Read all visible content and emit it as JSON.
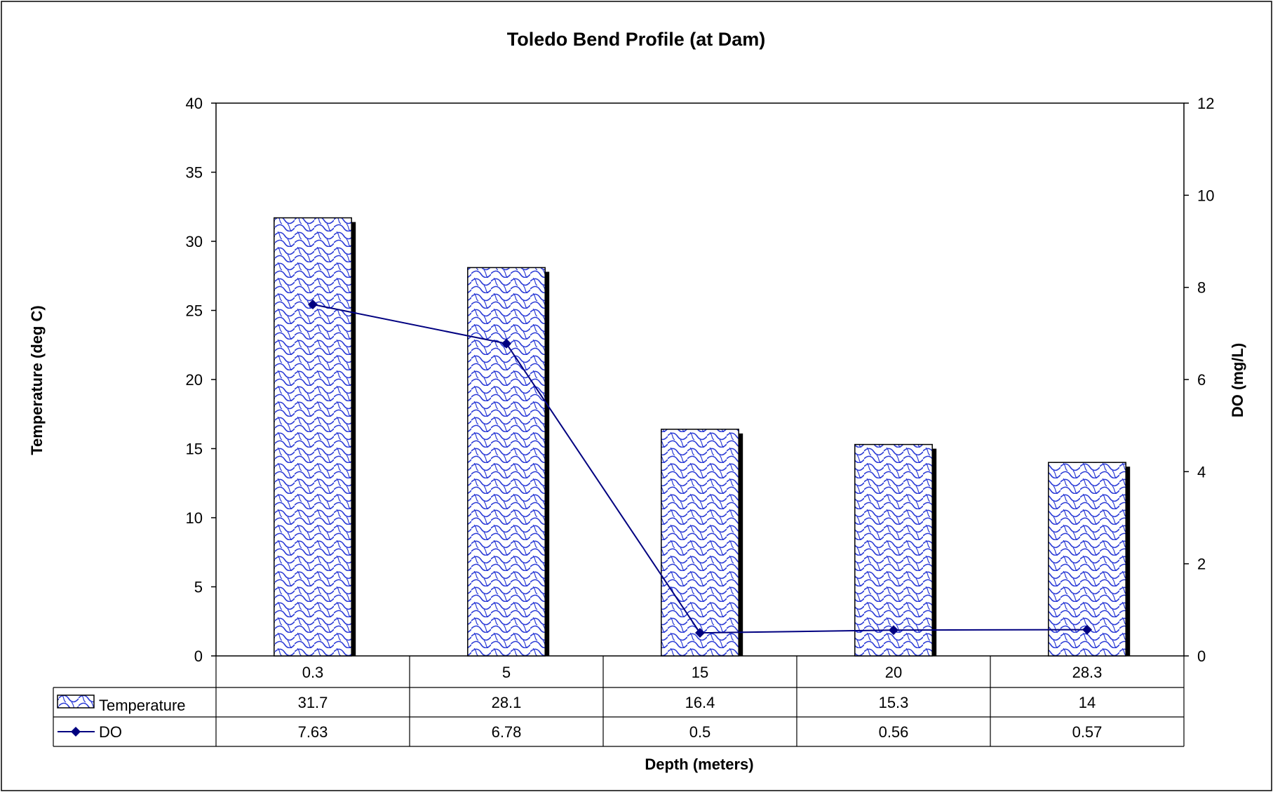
{
  "chart_data": {
    "type": "bar",
    "title": "Toledo Bend Profile (at Dam)",
    "xlabel": "Depth (meters)",
    "categories": [
      "0.3",
      "5",
      "15",
      "20",
      "28.3"
    ],
    "series": [
      {
        "name": "Temperature",
        "kind": "bar",
        "axis": "left",
        "values": [
          31.7,
          28.1,
          16.4,
          15.3,
          14
        ]
      },
      {
        "name": "DO",
        "kind": "line",
        "axis": "right",
        "values": [
          7.63,
          6.78,
          0.5,
          0.56,
          0.57
        ]
      }
    ],
    "y_left": {
      "label": "Temperature (deg C)",
      "min": 0,
      "max": 40,
      "ticks": [
        "0",
        "5",
        "10",
        "15",
        "20",
        "25",
        "30",
        "35",
        "40"
      ]
    },
    "y_right": {
      "label": "DO (mg/L)",
      "min": 0,
      "max": 12,
      "ticks": [
        "0",
        "2",
        "4",
        "6",
        "8",
        "10",
        "12"
      ]
    },
    "data_table": {
      "rows": [
        {
          "label": "Temperature",
          "cells": [
            "31.7",
            "28.1",
            "16.4",
            "15.3",
            "14"
          ]
        },
        {
          "label": "DO",
          "cells": [
            "7.63",
            "6.78",
            "0.5",
            "0.56",
            "0.57"
          ]
        }
      ]
    },
    "grid": false,
    "legend": "data-table",
    "colors": {
      "bar_pattern": "#2b3bd6",
      "bar_fill": "#ffffff",
      "line": "#000080",
      "marker": "#000080",
      "frame": "#000000"
    }
  }
}
